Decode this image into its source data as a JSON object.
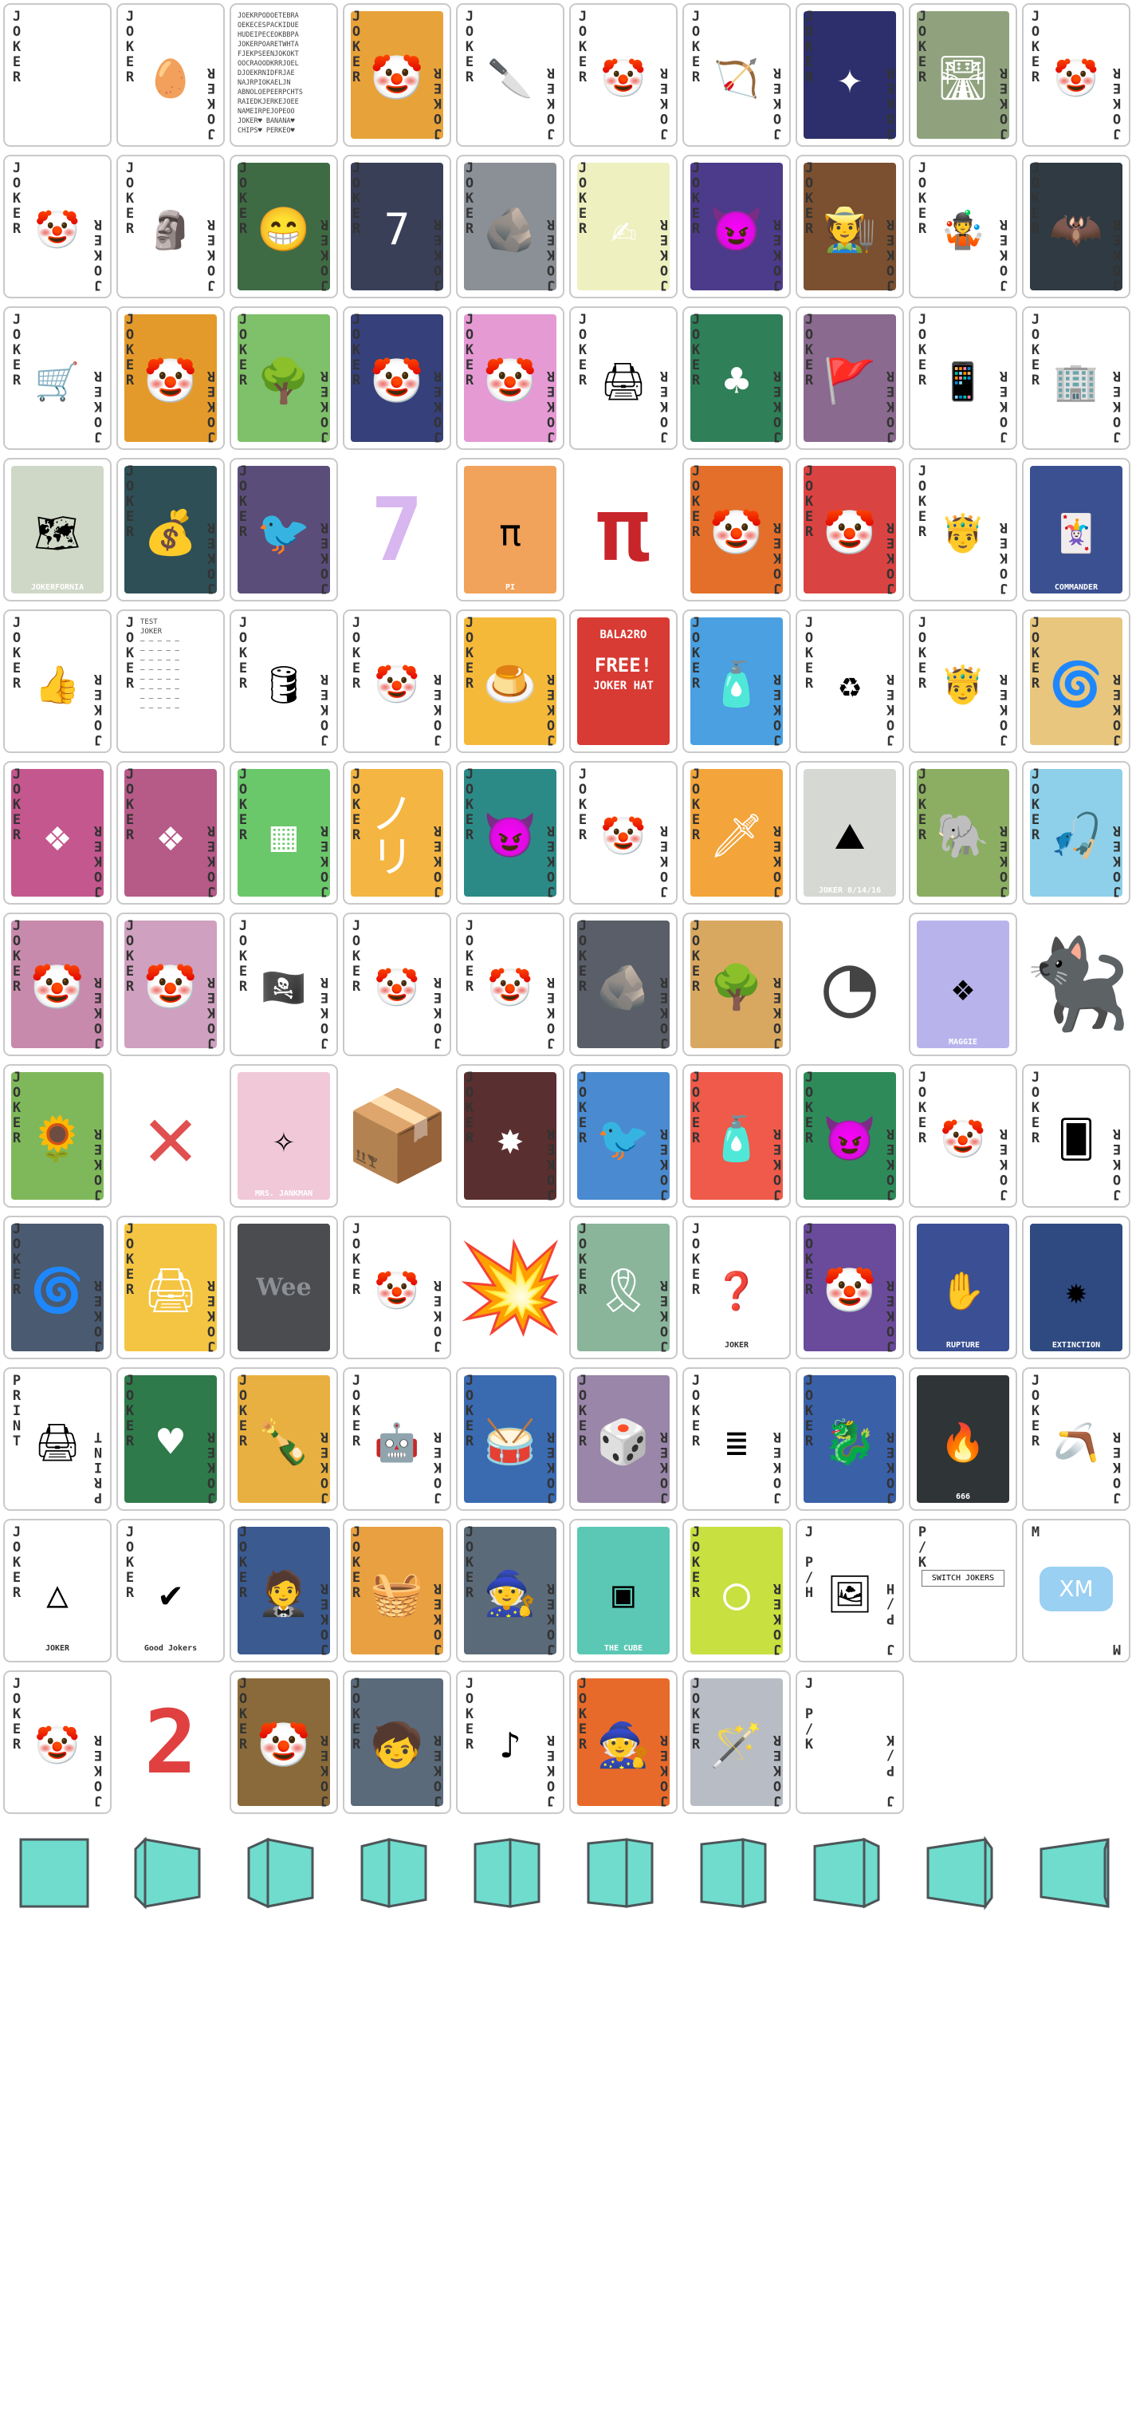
{
  "sheet": {
    "joker_label": "JOKER",
    "cards": [
      {
        "name": "joker-card-blank",
        "label": "JOKER",
        "kind": "blank",
        "bg": "#e8eaee"
      },
      {
        "name": "joker-card-egg",
        "kind": "white",
        "icon": "golden-egg-icon",
        "glyph": "🥚"
      },
      {
        "name": "joker-card-text-wall",
        "kind": "text",
        "lines": [
          "JOEKRPODOETEBRA",
          "OEKECESPACKIDUE",
          "HUDEIPECEOKBBPA",
          "JOKERPOARETWHTA",
          "FJEKPSEENJOKOKT",
          "OOCRAOODKRRJOEL",
          "DJOEKRNIDFRJAE",
          "NAJRPIOKAELJN",
          "ABNOLOEPEERPCHTS",
          "RAIEDKJERKEJOEE",
          "NAMEIRPEJOPEOO",
          "JOKER♥ BANANA♥",
          "CHIPS♥ PERKEO♥"
        ]
      },
      {
        "name": "joker-card-rainbow-joker",
        "kind": "art",
        "bg": "#e8a23a",
        "glyph": "🤡"
      },
      {
        "name": "joker-card-knife",
        "kind": "white",
        "icon": "knife-icon",
        "glyph": "🔪"
      },
      {
        "name": "joker-card-green-hat-joker",
        "kind": "white",
        "icon": "green-hat-joker-icon",
        "glyph": "🤡"
      },
      {
        "name": "joker-card-robin-hood",
        "kind": "white",
        "icon": "archer-icon",
        "glyph": "🏹"
      },
      {
        "name": "joker-card-cosmic",
        "kind": "art",
        "bg": "#2c2f6b",
        "glyph": "✦"
      },
      {
        "name": "joker-card-road",
        "kind": "art",
        "bg": "#8fa27d",
        "glyph": "🛣"
      },
      {
        "name": "joker-card-joker-jester",
        "kind": "white",
        "icon": "jester-icon",
        "glyph": "🤡"
      },
      {
        "name": "joker-card-orange-label-joker",
        "label": "JOKER",
        "kind": "white",
        "icon": "jester-icon",
        "glyph": "🤡"
      },
      {
        "name": "joker-card-sculptor",
        "kind": "white",
        "icon": "sculptor-icon",
        "glyph": "🗿"
      },
      {
        "name": "joker-card-green-joker",
        "kind": "art",
        "bg": "#3f6b44",
        "glyph": "😁"
      },
      {
        "name": "joker-card-lucky-seven",
        "kind": "art",
        "bg": "#3a3f58",
        "glyph": "7"
      },
      {
        "name": "joker-card-stone-wall",
        "kind": "art",
        "bg": "#8b8f96",
        "glyph": "🪨"
      },
      {
        "name": "joker-card-scribble",
        "kind": "art",
        "bg": "#eef0c0",
        "glyph": "✍"
      },
      {
        "name": "joker-card-purple-joker",
        "kind": "art",
        "bg": "#4b3b8a",
        "glyph": "😈"
      },
      {
        "name": "joker-card-scarecrow",
        "kind": "art",
        "bg": "#7a5030",
        "glyph": "🧑‍🌾"
      },
      {
        "name": "joker-card-juggler",
        "kind": "white",
        "icon": "juggler-icon",
        "glyph": "🤹"
      },
      {
        "name": "joker-card-bat",
        "kind": "art",
        "bg": "#2f3a42",
        "glyph": "🦇"
      },
      {
        "name": "joker-card-cart",
        "kind": "white",
        "icon": "shopping-cart-icon",
        "glyph": "🛒"
      },
      {
        "name": "joker-card-orange-hoodie",
        "kind": "art",
        "bg": "#e49a2a",
        "glyph": "🤡"
      },
      {
        "name": "joker-card-tree",
        "kind": "art",
        "bg": "#7fc06a",
        "glyph": "🌳"
      },
      {
        "name": "joker-card-blue-joker",
        "kind": "art",
        "bg": "#36407a",
        "glyph": "🤡"
      },
      {
        "name": "joker-card-pink-joker",
        "kind": "art",
        "bg": "#e59ad4",
        "glyph": "🤡"
      },
      {
        "name": "joker-card-printer",
        "kind": "white",
        "icon": "printer-icon",
        "glyph": "🖨"
      },
      {
        "name": "joker-card-green-felt",
        "kind": "art",
        "bg": "#2f7f58",
        "glyph": "♣"
      },
      {
        "name": "joker-card-flag",
        "kind": "art",
        "bg": "#8a6a8e",
        "glyph": "🚩"
      },
      {
        "name": "joker-card-phone-hand",
        "kind": "white",
        "icon": "phone-icon",
        "glyph": "📱"
      },
      {
        "name": "joker-card-building",
        "kind": "white",
        "icon": "building-icon",
        "glyph": "🏢"
      },
      {
        "name": "joker-card-map",
        "kind": "caption",
        "bg": "#cfd8c6",
        "glyph": "🗺",
        "caption": "JOKERFORNIA"
      },
      {
        "name": "joker-card-cash-stack",
        "kind": "art",
        "bg": "#2f4f57",
        "glyph": "💰"
      },
      {
        "name": "joker-card-raven",
        "kind": "art",
        "bg": "#5b4d7a",
        "glyph": "🐦"
      },
      {
        "name": "joker-card-seven-ghost",
        "kind": "bare",
        "glyph": "7",
        "color": "#d8b6ef"
      },
      {
        "name": "joker-card-pi-orange",
        "kind": "caption",
        "bg": "#f1a25b",
        "glyph": "π",
        "caption": "PI"
      },
      {
        "name": "joker-card-pi-symbol",
        "kind": "bare",
        "glyph": "π",
        "color": "#c8252b"
      },
      {
        "name": "joker-card-orange-diamond-joker",
        "kind": "art",
        "bg": "#e36f2a",
        "glyph": "🤡"
      },
      {
        "name": "joker-card-red-diamond-joker",
        "kind": "art",
        "bg": "#d94341",
        "glyph": "🤡"
      },
      {
        "name": "joker-card-crown-joker",
        "kind": "white",
        "icon": "crowned-joker-icon",
        "glyph": "🤴"
      },
      {
        "name": "joker-card-commander",
        "kind": "caption",
        "bg": "#3a5090",
        "glyph": "🃏",
        "caption": "COMMANDER"
      },
      {
        "name": "joker-card-thumbs-up",
        "kind": "white",
        "icon": "thumbs-up-joker-icon",
        "glyph": "👍"
      },
      {
        "name": "joker-card-test",
        "kind": "text",
        "lines": [
          "TEST",
          "JOKER",
          "— — — — —",
          "— — — — —",
          "— — — — —",
          "— — — — —",
          "— — — — —",
          "— — — — —",
          "— — — — —",
          "— — — — —"
        ]
      },
      {
        "name": "joker-card-barrel",
        "kind": "white",
        "icon": "barrel-icon",
        "glyph": "🛢"
      },
      {
        "name": "joker-card-r-joker",
        "kind": "white",
        "icon": "jester-icon",
        "glyph": "🤡"
      },
      {
        "name": "joker-card-pudding",
        "kind": "art",
        "bg": "#f5b93a",
        "glyph": "🍮"
      },
      {
        "name": "joker-card-balatro-ad",
        "kind": "ad",
        "bg": "#d83a34",
        "lines": [
          "BALA2RO",
          "FREE!",
          "JOKER HAT"
        ]
      },
      {
        "name": "joker-card-water-bottle",
        "kind": "art",
        "bg": "#4aa0e0",
        "glyph": "🧴"
      },
      {
        "name": "joker-card-recycle-cash",
        "kind": "white",
        "icon": "recycle-icon",
        "glyph": "♻"
      },
      {
        "name": "joker-card-red-crown-joker",
        "kind": "white",
        "icon": "crowned-joker-icon",
        "glyph": "🤴"
      },
      {
        "name": "joker-card-spiral",
        "kind": "art",
        "bg": "#e8c67e",
        "glyph": "🌀"
      },
      {
        "name": "joker-card-pink-pattern",
        "kind": "art",
        "bg": "#c4578e",
        "glyph": "❖"
      },
      {
        "name": "joker-card-pink-pattern-2",
        "kind": "art",
        "bg": "#b65a88",
        "glyph": "❖"
      },
      {
        "name": "joker-card-tetris-board",
        "kind": "art",
        "bg": "#6ac86a",
        "glyph": "▦"
      },
      {
        "name": "joker-card-yellow-rays",
        "kind": "art",
        "bg": "#f4b542",
        "glyph": "ノリ"
      },
      {
        "name": "joker-card-teal-joker",
        "kind": "art",
        "bg": "#2c8a86",
        "glyph": "😈"
      },
      {
        "name": "joker-card-red-hat-jester",
        "kind": "white",
        "icon": "jester-icon",
        "glyph": "🤡"
      },
      {
        "name": "joker-card-flame-knife",
        "kind": "art",
        "bg": "#f3a43a",
        "glyph": "🗡"
      },
      {
        "name": "joker-card-rushmore",
        "kind": "caption",
        "bg": "#d6d8d4",
        "glyph": "⛰",
        "caption": "JOKER 8/14/16"
      },
      {
        "name": "joker-card-elephant",
        "kind": "art",
        "bg": "#8bae62",
        "glyph": "🐘"
      },
      {
        "name": "joker-card-fishing",
        "kind": "art",
        "bg": "#8ed0ea",
        "glyph": "🎣"
      },
      {
        "name": "joker-card-faded-pink-joker",
        "kind": "art",
        "bg": "#c88aac",
        "glyph": "🤡"
      },
      {
        "name": "joker-card-faded-pink-joker-2",
        "kind": "art",
        "bg": "#cfa0bf",
        "glyph": "🤡"
      },
      {
        "name": "joker-card-eye-patch",
        "kind": "white",
        "icon": "eye-patch-icon",
        "glyph": "🏴‍☠️"
      },
      {
        "name": "joker-card-classic-joker",
        "kind": "white",
        "icon": "jester-icon",
        "glyph": "🤡"
      },
      {
        "name": "joker-card-classic-joker-2",
        "kind": "white",
        "icon": "jester-icon",
        "glyph": "🤡"
      },
      {
        "name": "joker-card-rock-pile",
        "kind": "art",
        "bg": "#5a5e68",
        "glyph": "🪨"
      },
      {
        "name": "joker-card-autumn-tree",
        "kind": "art",
        "bg": "#d9a860",
        "glyph": "🌳"
      },
      {
        "name": "joker-card-outline-bowl",
        "kind": "bare",
        "glyph": "◔",
        "color": "#444"
      },
      {
        "name": "joker-card-maggie",
        "kind": "caption",
        "bg": "#b9b3ec",
        "glyph": "❖",
        "caption": "MAGGIE"
      },
      {
        "name": "joker-card-black-cat",
        "kind": "bare",
        "glyph": "🐈‍⬛",
        "color": "#222"
      },
      {
        "name": "joker-card-sunflower",
        "kind": "art",
        "bg": "#7fb85a",
        "glyph": "🌻"
      },
      {
        "name": "joker-card-red-x",
        "kind": "bare",
        "glyph": "✕",
        "color": "#e05050"
      },
      {
        "name": "joker-card-mrs-jankman",
        "kind": "caption",
        "bg": "#f0c8d8",
        "glyph": "✧",
        "caption": "MRS. JANKMAN"
      },
      {
        "name": "joker-card-monster-box",
        "kind": "bare",
        "glyph": "📦",
        "color": "#555"
      },
      {
        "name": "joker-card-fireworks",
        "kind": "art",
        "bg": "#5a2f2f",
        "glyph": "✸"
      },
      {
        "name": "joker-card-blue-sky-bird",
        "kind": "art",
        "bg": "#4a8ad0",
        "glyph": "🐦"
      },
      {
        "name": "joker-card-red-bottle",
        "kind": "art",
        "bg": "#ef5a4a",
        "glyph": "🧴"
      },
      {
        "name": "joker-card-green-jester",
        "kind": "art",
        "bg": "#2f8a5a",
        "glyph": "😈"
      },
      {
        "name": "joker-card-faded-jester",
        "kind": "white",
        "icon": "jester-icon",
        "glyph": "🤡"
      },
      {
        "name": "joker-card-many-cards",
        "kind": "white",
        "icon": "cards-grid-icon",
        "glyph": "🂠"
      },
      {
        "name": "joker-card-hurricane",
        "kind": "art",
        "bg": "#4a5a70",
        "glyph": "🌀"
      },
      {
        "name": "joker-card-printer-rays",
        "kind": "art",
        "bg": "#f4c542",
        "glyph": "🖨"
      },
      {
        "name": "joker-card-wee",
        "kind": "wee",
        "bg": "#4a4c50",
        "caption": "Wee"
      },
      {
        "name": "joker-card-tiny-joker",
        "kind": "white",
        "icon": "tiny-jester-icon",
        "glyph": "🤡"
      },
      {
        "name": "joker-card-splash",
        "kind": "bare",
        "glyph": "💥",
        "color": "#f0a020"
      },
      {
        "name": "joker-card-ribbon",
        "kind": "art",
        "bg": "#8ab59a",
        "glyph": "🎗"
      },
      {
        "name": "joker-card-question-jokers",
        "kind": "caption",
        "bg": "#ffffff",
        "glyph": "❓",
        "caption": "JOKER"
      },
      {
        "name": "joker-card-purple-scholar",
        "kind": "art",
        "bg": "#6a4a9a",
        "glyph": "🤡"
      },
      {
        "name": "joker-card-rupture",
        "kind": "caption",
        "bg": "#3a4f94",
        "glyph": "✋",
        "caption": "RUPTURE"
      },
      {
        "name": "joker-card-extinction",
        "kind": "caption",
        "bg": "#2f4a80",
        "glyph": "✹",
        "caption": "EXTINCTION"
      },
      {
        "name": "joker-card-print",
        "label": "PRINT",
        "kind": "white",
        "icon": "printer-icon",
        "glyph": "🖨"
      },
      {
        "name": "joker-card-green-hearts",
        "kind": "art",
        "bg": "#2f7a4a",
        "glyph": "♥"
      },
      {
        "name": "joker-card-bottle-k",
        "kind": "art",
        "bg": "#e8b040",
        "glyph": "🍾"
      },
      {
        "name": "joker-card-robot-splash",
        "kind": "white",
        "icon": "robot-icon",
        "glyph": "🤖"
      },
      {
        "name": "joker-card-drummer",
        "kind": "art",
        "bg": "#3a6ab0",
        "glyph": "🥁"
      },
      {
        "name": "joker-card-dice",
        "kind": "art",
        "bg": "#9a86a8",
        "glyph": "🎲"
      },
      {
        "name": "joker-card-teal-stack",
        "kind": "white",
        "icon": "stack-icon",
        "glyph": "≣"
      },
      {
        "name": "joker-card-green-dragon",
        "kind": "art",
        "bg": "#3a60a8",
        "glyph": "🐉"
      },
      {
        "name": "joker-card-666",
        "kind": "caption",
        "bg": "#2f3436",
        "glyph": "🔥",
        "caption": "666"
      },
      {
        "name": "joker-card-boomerang",
        "kind": "white",
        "icon": "boomerang-icon",
        "glyph": "🪃"
      },
      {
        "name": "joker-card-pyramid",
        "kind": "caption",
        "bg": "#ffffff",
        "glyph": "△",
        "caption": "JOKER"
      },
      {
        "name": "joker-card-good-jokers",
        "kind": "caption",
        "bg": "#ffffff",
        "glyph": "✔",
        "caption": "Good Jokers"
      },
      {
        "name": "joker-card-suit-joker",
        "kind": "art",
        "bg": "#3a5a90",
        "glyph": "🤵"
      },
      {
        "name": "joker-card-basket-joker",
        "kind": "art",
        "bg": "#e8a040",
        "glyph": "🧺"
      },
      {
        "name": "joker-card-old-sage",
        "kind": "art",
        "bg": "#5a6a78",
        "glyph": "🧙"
      },
      {
        "name": "joker-card-the-cube",
        "kind": "caption",
        "bg": "#5ac8b4",
        "glyph": "▣",
        "caption": "THE CUBE"
      },
      {
        "name": "joker-card-lime",
        "kind": "art",
        "bg": "#c8e040",
        "glyph": "◯"
      },
      {
        "name": "joker-card-easel",
        "label": "J P/H",
        "kind": "white",
        "icon": "easel-icon",
        "glyph": "🖼"
      },
      {
        "name": "joker-card-switch-jokers",
        "label": "P/K",
        "kind": "note",
        "caption": "SWITCH JOKERS"
      },
      {
        "name": "joker-card-xm",
        "label": "M",
        "kind": "xm",
        "caption": "XM"
      },
      {
        "name": "joker-card-grey-jester",
        "kind": "white",
        "icon": "jester-icon",
        "glyph": "🤡"
      },
      {
        "name": "joker-card-red-two",
        "kind": "bare",
        "glyph": "2",
        "color": "#e04040"
      },
      {
        "name": "joker-card-golden-joker",
        "kind": "art",
        "bg": "#8a6a3a",
        "glyph": "🤡"
      },
      {
        "name": "joker-card-mountain-kid",
        "kind": "art",
        "bg": "#5a6a7a",
        "glyph": "🧒"
      },
      {
        "name": "joker-card-music-note",
        "kind": "white",
        "icon": "music-note-icon",
        "glyph": "♪"
      },
      {
        "name": "joker-card-fire-wizard",
        "kind": "art",
        "bg": "#e86a2a",
        "glyph": "🧙"
      },
      {
        "name": "joker-card-jester-wand",
        "kind": "art",
        "bg": "#b8bcc4",
        "glyph": "🪄"
      },
      {
        "name": "joker-card-pk-blank",
        "label": "J P/K",
        "kind": "white",
        "icon": "",
        "glyph": ""
      }
    ],
    "tiles": [
      {
        "name": "cube-tile-flat",
        "frame": 0
      },
      {
        "name": "cube-tile-turn-1",
        "frame": 1
      },
      {
        "name": "cube-tile-turn-2",
        "frame": 2
      },
      {
        "name": "cube-tile-turn-3",
        "frame": 3
      },
      {
        "name": "cube-tile-turn-4",
        "frame": 4
      },
      {
        "name": "cube-tile-turn-5",
        "frame": 5
      },
      {
        "name": "cube-tile-turn-6",
        "frame": 6
      },
      {
        "name": "cube-tile-turn-7",
        "frame": 7
      },
      {
        "name": "cube-tile-turn-8",
        "frame": 8
      },
      {
        "name": "cube-tile-turn-9",
        "frame": 9
      }
    ],
    "tile_color": "#6fdccd",
    "tile_edge": "#4c5558"
  }
}
